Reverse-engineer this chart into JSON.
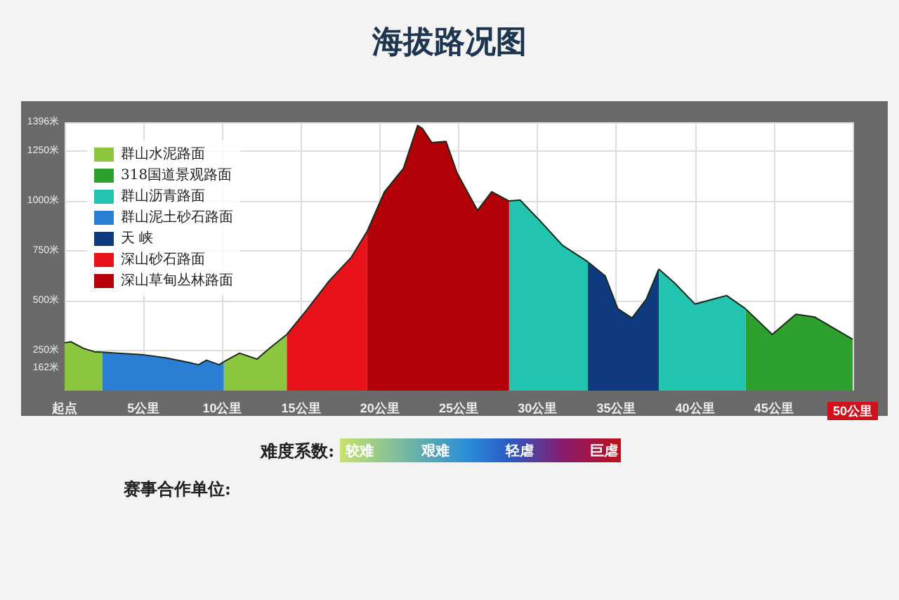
{
  "chart_data": {
    "type": "area",
    "title": "海拔路况图",
    "x": [
      0,
      0.4,
      1.2,
      1.9,
      2.4,
      3.4,
      4.9,
      6.4,
      7.9,
      8.5,
      9.0,
      9.8,
      10.1,
      11.1,
      12.2,
      13.0,
      14.1,
      15.3,
      16.8,
      18.2,
      19.2,
      20.3,
      21.5,
      22.4,
      22.7,
      23.3,
      24.2,
      24.9,
      26.2,
      27.1,
      28.2,
      28.9,
      30.1,
      31.6,
      33.2,
      34.3,
      35.1,
      36.0,
      36.9,
      37.7,
      38.7,
      40.0,
      42.0,
      43.2,
      44.9,
      46.4,
      47.6,
      50
    ],
    "series": [
      {
        "name": "群山水泥路面",
        "color": "#8cc63f",
        "values": [
          290,
          295,
          262,
          245,
          243,
          null,
          null,
          null,
          null,
          null,
          null,
          null,
          195,
          238,
          208,
          262,
          332,
          null,
          null,
          null,
          null,
          null,
          null,
          null,
          null,
          null,
          null,
          null,
          null,
          null,
          null,
          null,
          null,
          null,
          null,
          null,
          null,
          null,
          null,
          null,
          null,
          null,
          null,
          null,
          null,
          null,
          null,
          null
        ]
      },
      {
        "name": "318国道景观路面",
        "color": "#2ea02e",
        "values": [
          null,
          null,
          null,
          null,
          null,
          null,
          null,
          null,
          null,
          null,
          null,
          null,
          null,
          null,
          null,
          null,
          null,
          null,
          null,
          null,
          null,
          null,
          null,
          null,
          null,
          null,
          null,
          null,
          null,
          null,
          null,
          null,
          null,
          null,
          null,
          null,
          null,
          null,
          null,
          null,
          null,
          null,
          null,
          461,
          332,
          433,
          419,
          308
        ]
      },
      {
        "name": "群山沥青路面",
        "color": "#22c4b0",
        "values": [
          null,
          null,
          null,
          null,
          null,
          null,
          null,
          null,
          null,
          null,
          null,
          null,
          null,
          null,
          null,
          null,
          null,
          null,
          null,
          null,
          null,
          null,
          null,
          null,
          null,
          null,
          null,
          null,
          null,
          null,
          1001,
          1006,
          907,
          778,
          696,
          null,
          null,
          null,
          null,
          660,
          590,
          484,
          527,
          461,
          null,
          null,
          null,
          null
        ]
      },
      {
        "name": "群山泥土砂石路面",
        "color": "#2a7fd4",
        "values": [
          null,
          null,
          null,
          null,
          243,
          238,
          231,
          215,
          191,
          180,
          203,
          180,
          195,
          null,
          null,
          null,
          null,
          null,
          null,
          null,
          null,
          null,
          null,
          null,
          null,
          null,
          null,
          null,
          null,
          null,
          null,
          null,
          null,
          null,
          null,
          null,
          null,
          null,
          null,
          null,
          null,
          null,
          null,
          null,
          null,
          null,
          null,
          null
        ]
      },
      {
        "name": "天 峡",
        "color": "#0f3a80",
        "values": [
          null,
          null,
          null,
          null,
          null,
          null,
          null,
          null,
          null,
          null,
          null,
          null,
          null,
          null,
          null,
          null,
          null,
          null,
          null,
          null,
          null,
          null,
          null,
          null,
          null,
          null,
          null,
          null,
          null,
          null,
          null,
          null,
          null,
          null,
          696,
          625,
          461,
          414,
          508,
          660,
          null,
          null,
          null,
          null,
          null,
          null,
          null,
          null
        ]
      },
      {
        "name": "深山砂石路面",
        "color": "#e8121a",
        "values": [
          null,
          null,
          null,
          null,
          null,
          null,
          null,
          null,
          null,
          null,
          null,
          null,
          null,
          null,
          null,
          null,
          332,
          449,
          602,
          720,
          850,
          null,
          null,
          null,
          null,
          null,
          null,
          null,
          null,
          null,
          null,
          null,
          null,
          null,
          null,
          null,
          null,
          null,
          null,
          null,
          null,
          null,
          null,
          null,
          null,
          null,
          null,
          null
        ]
      },
      {
        "name": "深山草甸丛林路面",
        "color": "#b30008",
        "values": [
          null,
          null,
          null,
          null,
          null,
          null,
          null,
          null,
          null,
          null,
          null,
          null,
          null,
          null,
          null,
          null,
          null,
          null,
          null,
          null,
          850,
          1048,
          1165,
          1380,
          1365,
          1294,
          1300,
          1142,
          954,
          1048,
          1001,
          null,
          null,
          null,
          null,
          null,
          null,
          null,
          null,
          null,
          null,
          null,
          null,
          null,
          null,
          null,
          null,
          null
        ]
      }
    ],
    "xlim": [
      0,
      50
    ],
    "xticks": [
      {
        "value": 0,
        "label": "起点"
      },
      {
        "value": 5,
        "label": "5公里"
      },
      {
        "value": 10,
        "label": "10公里"
      },
      {
        "value": 15,
        "label": "15公里"
      },
      {
        "value": 20,
        "label": "20公里"
      },
      {
        "value": 25,
        "label": "25公里"
      },
      {
        "value": 30,
        "label": "30公里"
      },
      {
        "value": 35,
        "label": "35公里"
      },
      {
        "value": 40,
        "label": "40公里"
      },
      {
        "value": 45,
        "label": "45公里"
      },
      {
        "value": 50,
        "label": "50公里"
      }
    ],
    "ylim": [
      50,
      1396
    ],
    "yticks": [
      {
        "value": 162,
        "label": "162米"
      },
      {
        "value": 250,
        "label": "250米"
      },
      {
        "value": 500,
        "label": "500米"
      },
      {
        "value": 750,
        "label": "750米"
      },
      {
        "value": 1000,
        "label": "1000米"
      },
      {
        "value": 1250,
        "label": "1250米"
      },
      {
        "value": 1396,
        "label": "1396米"
      }
    ],
    "grid": true,
    "legend": "top left",
    "marker": "none",
    "annotations": [
      "难度系数:",
      "较难",
      "艰难",
      "轻虐",
      "巨虐",
      "赛事合作单位:"
    ]
  }
}
